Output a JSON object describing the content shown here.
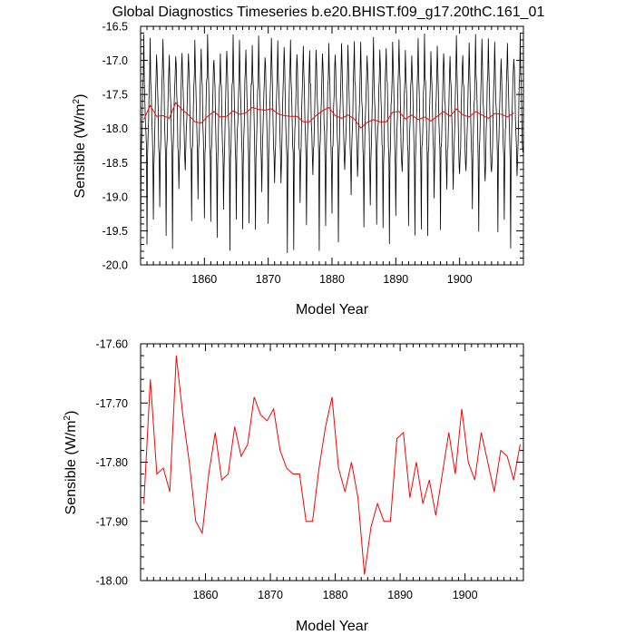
{
  "title": "Global Diagnostics Timeseries b.e20.BHIST.f09_g17.20thC.161_01",
  "chart_data": [
    {
      "type": "line",
      "xlabel": "Model Year",
      "ylabel": "Sensible (W/m",
      "ylabel_sup": "2",
      "ylabel_close": ")",
      "xlim": [
        1850,
        1910
      ],
      "ylim": [
        -20.0,
        -16.5
      ],
      "xticks": [
        1860,
        1870,
        1880,
        1890,
        1900
      ],
      "xtick_labels": [
        "1860",
        "1870",
        "1880",
        "1890",
        "1900"
      ],
      "yticks": [
        -20.0,
        -19.5,
        -19.0,
        -18.5,
        -18.0,
        -17.5,
        -17.0,
        -16.5
      ],
      "ytick_labels": [
        "-20.0",
        "-19.5",
        "-19.0",
        "-18.5",
        "-18.0",
        "-17.5",
        "-17.0",
        "-16.5"
      ],
      "grid": false,
      "series": [
        {
          "kind": "monthly",
          "color": "#000000",
          "x_start": 1850.0,
          "x_step": 0.08333,
          "min_range": [
            -19.85,
            -18.6
          ],
          "max_range": [
            -17.0,
            -16.6
          ],
          "mean": -17.8
        },
        {
          "kind": "annual",
          "color": "#ff0000",
          "x": [
            1850.5,
            1851.5,
            1852.5,
            1853.5,
            1854.5,
            1855.5,
            1856.5,
            1857.5,
            1858.5,
            1859.5,
            1860.5,
            1861.5,
            1862.5,
            1863.5,
            1864.5,
            1865.5,
            1866.5,
            1867.5,
            1868.5,
            1869.5,
            1870.5,
            1871.5,
            1872.5,
            1873.5,
            1874.5,
            1875.5,
            1876.5,
            1877.5,
            1878.5,
            1879.5,
            1880.5,
            1881.5,
            1882.5,
            1883.5,
            1884.5,
            1885.5,
            1886.5,
            1887.5,
            1888.5,
            1889.5,
            1890.5,
            1891.5,
            1892.5,
            1893.5,
            1894.5,
            1895.5,
            1896.5,
            1897.5,
            1898.5,
            1899.5,
            1900.5,
            1901.5,
            1902.5,
            1903.5,
            1904.5,
            1905.5,
            1906.5,
            1907.5,
            1908.5
          ],
          "values": [
            -17.87,
            -17.66,
            -17.82,
            -17.81,
            -17.85,
            -17.62,
            -17.72,
            -17.8,
            -17.9,
            -17.92,
            -17.82,
            -17.75,
            -17.83,
            -17.82,
            -17.74,
            -17.79,
            -17.77,
            -17.69,
            -17.72,
            -17.73,
            -17.71,
            -17.78,
            -17.81,
            -17.82,
            -17.82,
            -17.9,
            -17.9,
            -17.81,
            -17.74,
            -17.69,
            -17.81,
            -17.85,
            -17.8,
            -17.86,
            -17.99,
            -17.91,
            -17.87,
            -17.9,
            -17.9,
            -17.76,
            -17.75,
            -17.86,
            -17.8,
            -17.87,
            -17.83,
            -17.89,
            -17.82,
            -17.75,
            -17.82,
            -17.71,
            -17.8,
            -17.83,
            -17.75,
            -17.8,
            -17.85,
            -17.78,
            -17.79,
            -17.83,
            -17.77
          ]
        }
      ]
    },
    {
      "type": "line",
      "xlabel": "Model Year",
      "ylabel": "Sensible (W/m",
      "ylabel_sup": "2",
      "ylabel_close": ")",
      "xlim": [
        1850,
        1909
      ],
      "ylim": [
        -18.0,
        -17.6
      ],
      "xticks": [
        1860,
        1870,
        1880,
        1890,
        1900
      ],
      "xtick_labels": [
        "1860",
        "1870",
        "1880",
        "1890",
        "1900"
      ],
      "yticks": [
        -18.0,
        -17.9,
        -17.8,
        -17.7,
        -17.6
      ],
      "ytick_labels": [
        "-18.00",
        "-17.90",
        "-17.80",
        "-17.70",
        "-17.60"
      ],
      "grid": false,
      "series": [
        {
          "kind": "annual",
          "color": "#ff0000",
          "x": [
            1850.5,
            1851.5,
            1852.5,
            1853.5,
            1854.5,
            1855.5,
            1856.5,
            1857.5,
            1858.5,
            1859.5,
            1860.5,
            1861.5,
            1862.5,
            1863.5,
            1864.5,
            1865.5,
            1866.5,
            1867.5,
            1868.5,
            1869.5,
            1870.5,
            1871.5,
            1872.5,
            1873.5,
            1874.5,
            1875.5,
            1876.5,
            1877.5,
            1878.5,
            1879.5,
            1880.5,
            1881.5,
            1882.5,
            1883.5,
            1884.5,
            1885.5,
            1886.5,
            1887.5,
            1888.5,
            1889.5,
            1890.5,
            1891.5,
            1892.5,
            1893.5,
            1894.5,
            1895.5,
            1896.5,
            1897.5,
            1898.5,
            1899.5,
            1900.5,
            1901.5,
            1902.5,
            1903.5,
            1904.5,
            1905.5,
            1906.5,
            1907.5,
            1908.5
          ],
          "values": [
            -17.87,
            -17.66,
            -17.82,
            -17.81,
            -17.85,
            -17.62,
            -17.72,
            -17.8,
            -17.9,
            -17.92,
            -17.82,
            -17.75,
            -17.83,
            -17.82,
            -17.74,
            -17.79,
            -17.77,
            -17.69,
            -17.72,
            -17.73,
            -17.71,
            -17.78,
            -17.81,
            -17.82,
            -17.82,
            -17.9,
            -17.9,
            -17.81,
            -17.74,
            -17.69,
            -17.81,
            -17.85,
            -17.8,
            -17.86,
            -17.99,
            -17.91,
            -17.87,
            -17.9,
            -17.9,
            -17.76,
            -17.75,
            -17.86,
            -17.8,
            -17.87,
            -17.83,
            -17.89,
            -17.82,
            -17.75,
            -17.82,
            -17.71,
            -17.8,
            -17.83,
            -17.75,
            -17.8,
            -17.85,
            -17.78,
            -17.79,
            -17.83,
            -17.77
          ]
        }
      ]
    }
  ]
}
